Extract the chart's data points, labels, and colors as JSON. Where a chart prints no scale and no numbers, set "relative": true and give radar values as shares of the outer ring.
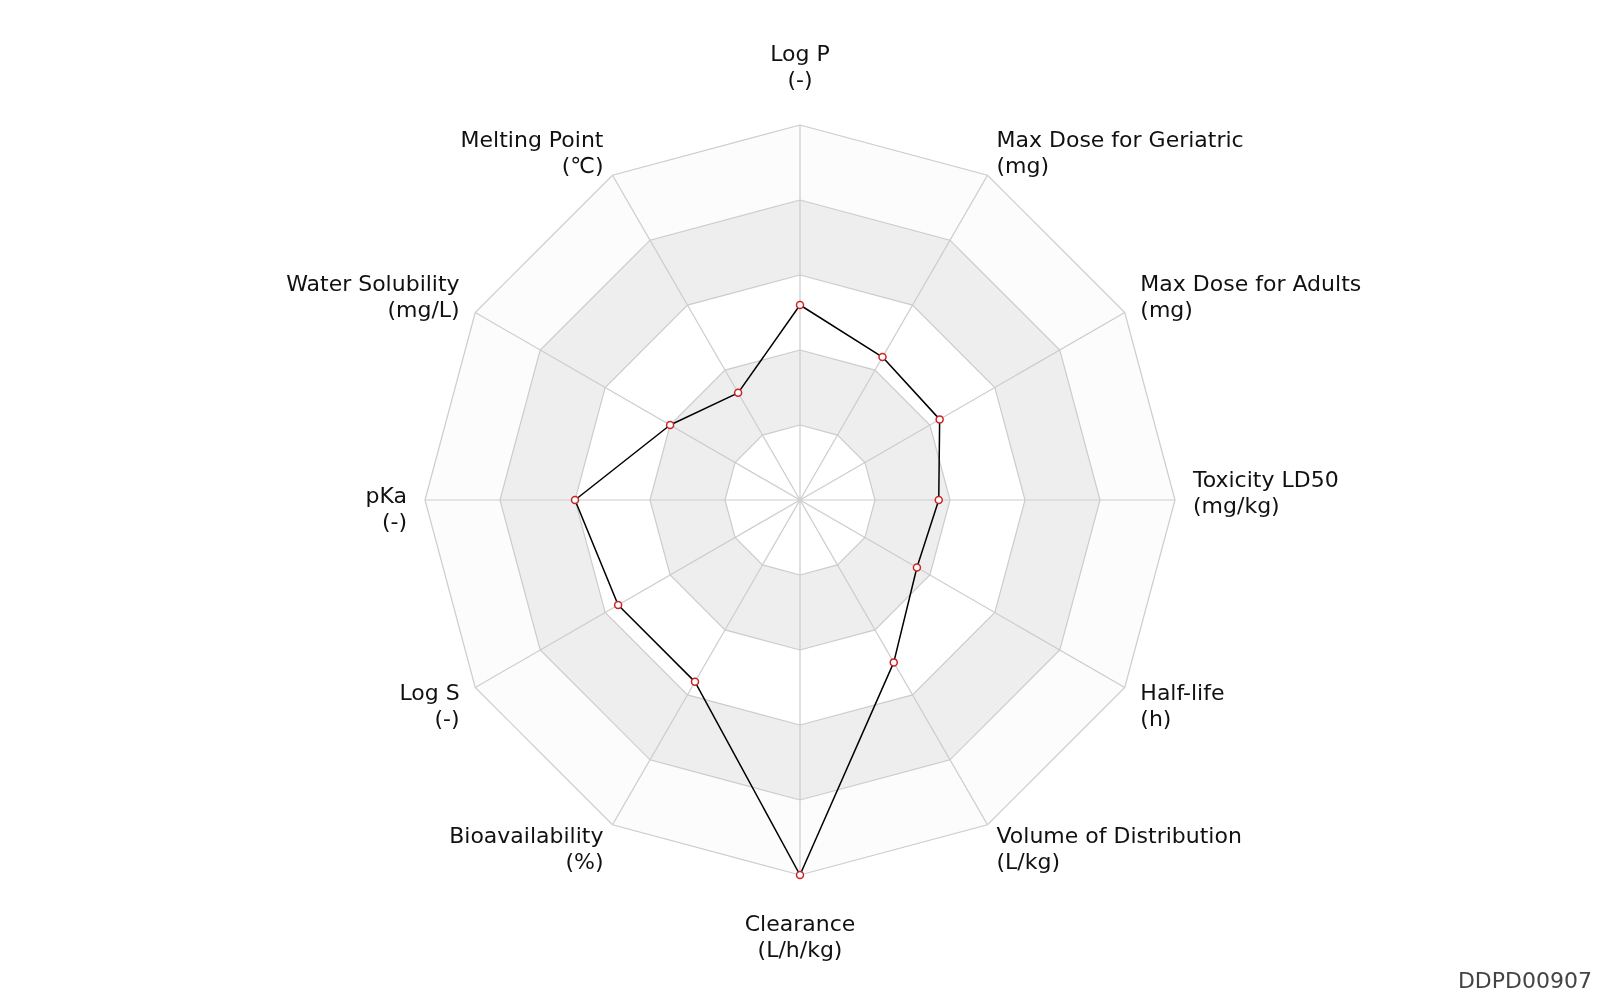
{
  "chart_data": {
    "type": "radar",
    "relative": true,
    "categories": [
      "Log P\n(-)",
      "Max Dose for Geriatric\n(mg)",
      "Max Dose for Adults\n(mg)",
      "Toxicity LD50\n(mg/kg)",
      "Half-life\n(h)",
      "Volume of Distribution\n(L/kg)",
      "Clearance\n(L/h/kg)",
      "Bioavailability\n(%)",
      "Log S\n(-)",
      "pKa\n(-)",
      "Water Solubility\n(mg/L)",
      "Melting Point\n(℃)"
    ],
    "series": [
      {
        "color": "#000000",
        "values": [
          0.52,
          0.44,
          0.43,
          0.37,
          0.36,
          0.5,
          1.0,
          0.56,
          0.56,
          0.6,
          0.4,
          0.33
        ]
      }
    ],
    "marker": "circle",
    "annotations": [
      "DDPD00907"
    ]
  }
}
